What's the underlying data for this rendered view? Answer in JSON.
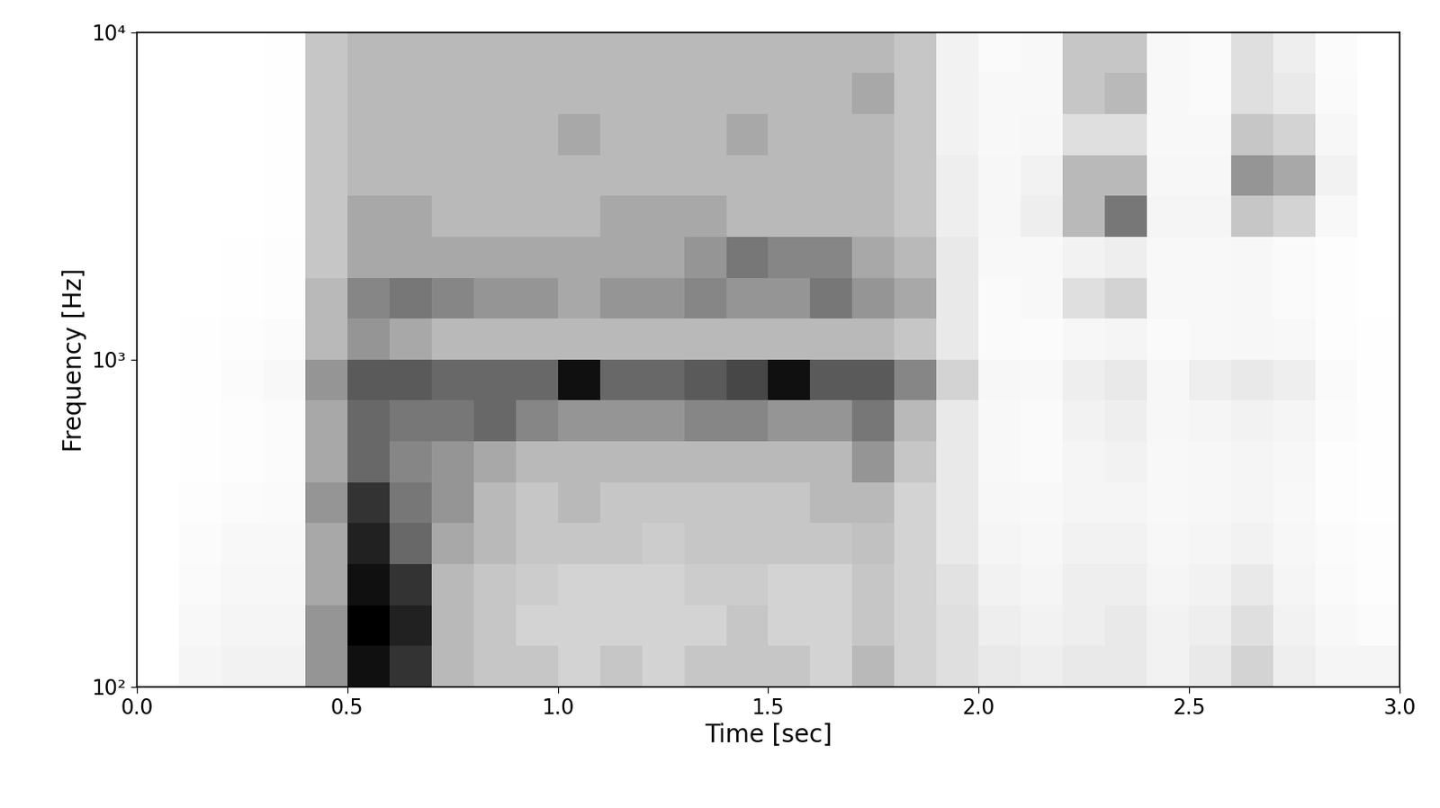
{
  "chart_data": {
    "type": "heatmap",
    "x_label": "Time [sec]",
    "y_label": "Frequency [Hz]",
    "log": "y",
    "color": "Greys",
    "xlim": [
      0.0,
      3.0
    ],
    "ylim": [
      100,
      10000
    ],
    "xticks": [
      0.0,
      0.5,
      1.0,
      1.5,
      2.0,
      2.5,
      3.0
    ],
    "yticks": [
      {
        "value": 100,
        "label": "10²"
      },
      {
        "value": 1000,
        "label": "10³"
      },
      {
        "value": 10000,
        "label": "10⁴"
      }
    ],
    "x": [
      0.0,
      0.1,
      0.2,
      0.3,
      0.4,
      0.5,
      0.6,
      0.7,
      0.8,
      0.9,
      1.0,
      1.1,
      1.2,
      1.3,
      1.4,
      1.5,
      1.6,
      1.7,
      1.8,
      1.9,
      2.0,
      2.1,
      2.2,
      2.3,
      2.4,
      2.5,
      2.6,
      2.7,
      2.8,
      2.9,
      3.0
    ],
    "y": [
      100,
      133.4,
      177.8,
      237.1,
      316.2,
      421.7,
      562.3,
      749.9,
      1000,
      1333.5,
      1778.3,
      2371.4,
      3162.3,
      4217,
      5623.4,
      7498.9,
      10000
    ],
    "cells": [
      [
        0,
        0.08,
        0.1,
        0.1,
        0.45,
        0.85,
        0.75,
        0.35,
        0.3,
        0.3,
        0.25,
        0.3,
        0.25,
        0.3,
        0.3,
        0.3,
        0.25,
        0.35,
        0.25,
        0.2,
        0.15,
        0.12,
        0.15,
        0.15,
        0.1,
        0.15,
        0.25,
        0.12,
        0.08,
        0.08
      ],
      [
        0,
        0.05,
        0.08,
        0.08,
        0.45,
        0.9,
        0.8,
        0.35,
        0.3,
        0.25,
        0.25,
        0.25,
        0.25,
        0.25,
        0.3,
        0.25,
        0.25,
        0.3,
        0.25,
        0.2,
        0.12,
        0.1,
        0.12,
        0.15,
        0.1,
        0.12,
        0.2,
        0.1,
        0.05,
        0.03
      ],
      [
        0,
        0.04,
        0.06,
        0.06,
        0.4,
        0.85,
        0.75,
        0.35,
        0.3,
        0.28,
        0.25,
        0.25,
        0.25,
        0.28,
        0.28,
        0.25,
        0.25,
        0.3,
        0.25,
        0.18,
        0.1,
        0.08,
        0.12,
        0.12,
        0.08,
        0.1,
        0.15,
        0.08,
        0.04,
        0.02
      ],
      [
        0,
        0.03,
        0.05,
        0.05,
        0.4,
        0.8,
        0.6,
        0.4,
        0.35,
        0.3,
        0.3,
        0.3,
        0.28,
        0.3,
        0.3,
        0.3,
        0.3,
        0.32,
        0.25,
        0.15,
        0.08,
        0.06,
        0.1,
        0.1,
        0.06,
        0.08,
        0.1,
        0.06,
        0.03,
        0.02
      ],
      [
        0,
        0.02,
        0.03,
        0.04,
        0.45,
        0.75,
        0.55,
        0.45,
        0.35,
        0.3,
        0.35,
        0.3,
        0.3,
        0.3,
        0.3,
        0.3,
        0.35,
        0.35,
        0.25,
        0.15,
        0.06,
        0.05,
        0.08,
        0.08,
        0.05,
        0.06,
        0.08,
        0.05,
        0.02,
        0.01
      ],
      [
        0,
        0.01,
        0.02,
        0.03,
        0.4,
        0.6,
        0.5,
        0.45,
        0.4,
        0.35,
        0.35,
        0.35,
        0.35,
        0.35,
        0.35,
        0.35,
        0.35,
        0.45,
        0.3,
        0.15,
        0.05,
        0.04,
        0.08,
        0.1,
        0.05,
        0.06,
        0.08,
        0.06,
        0.02,
        0.01
      ],
      [
        0,
        0.01,
        0.02,
        0.03,
        0.4,
        0.6,
        0.55,
        0.55,
        0.6,
        0.5,
        0.45,
        0.45,
        0.45,
        0.5,
        0.5,
        0.45,
        0.45,
        0.55,
        0.35,
        0.15,
        0.05,
        0.04,
        0.1,
        0.12,
        0.06,
        0.08,
        0.1,
        0.08,
        0.03,
        0.01
      ],
      [
        0,
        0.01,
        0.03,
        0.05,
        0.45,
        0.65,
        0.65,
        0.6,
        0.6,
        0.6,
        0.85,
        0.6,
        0.6,
        0.65,
        0.7,
        0.85,
        0.65,
        0.65,
        0.5,
        0.25,
        0.06,
        0.05,
        0.12,
        0.15,
        0.06,
        0.12,
        0.15,
        0.12,
        0.04,
        0.01
      ],
      [
        0,
        0.01,
        0.02,
        0.03,
        0.35,
        0.45,
        0.4,
        0.35,
        0.35,
        0.35,
        0.35,
        0.35,
        0.35,
        0.35,
        0.35,
        0.35,
        0.35,
        0.35,
        0.3,
        0.15,
        0.04,
        0.03,
        0.06,
        0.08,
        0.04,
        0.05,
        0.06,
        0.05,
        0.02,
        0.01
      ],
      [
        0,
        0,
        0.01,
        0.02,
        0.35,
        0.5,
        0.55,
        0.5,
        0.45,
        0.45,
        0.4,
        0.45,
        0.45,
        0.5,
        0.45,
        0.45,
        0.55,
        0.45,
        0.4,
        0.15,
        0.04,
        0.05,
        0.2,
        0.25,
        0.05,
        0.05,
        0.06,
        0.04,
        0.02,
        0
      ],
      [
        0,
        0,
        0.01,
        0.02,
        0.3,
        0.4,
        0.4,
        0.4,
        0.4,
        0.4,
        0.4,
        0.4,
        0.4,
        0.45,
        0.55,
        0.5,
        0.5,
        0.4,
        0.35,
        0.15,
        0.05,
        0.05,
        0.1,
        0.12,
        0.05,
        0.05,
        0.06,
        0.04,
        0.02,
        0
      ],
      [
        0,
        0,
        0,
        0.01,
        0.3,
        0.4,
        0.4,
        0.35,
        0.35,
        0.35,
        0.35,
        0.4,
        0.4,
        0.4,
        0.35,
        0.35,
        0.35,
        0.35,
        0.3,
        0.12,
        0.06,
        0.12,
        0.35,
        0.55,
        0.08,
        0.08,
        0.3,
        0.25,
        0.05,
        0
      ],
      [
        0,
        0,
        0,
        0.01,
        0.3,
        0.35,
        0.35,
        0.35,
        0.35,
        0.35,
        0.35,
        0.35,
        0.35,
        0.35,
        0.35,
        0.35,
        0.35,
        0.35,
        0.3,
        0.12,
        0.06,
        0.1,
        0.35,
        0.35,
        0.06,
        0.06,
        0.45,
        0.4,
        0.1,
        0
      ],
      [
        0,
        0,
        0,
        0.01,
        0.3,
        0.35,
        0.35,
        0.35,
        0.35,
        0.35,
        0.4,
        0.35,
        0.35,
        0.35,
        0.4,
        0.35,
        0.35,
        0.35,
        0.3,
        0.1,
        0.05,
        0.06,
        0.2,
        0.2,
        0.05,
        0.05,
        0.3,
        0.25,
        0.06,
        0
      ],
      [
        0,
        0,
        0,
        0.01,
        0.3,
        0.35,
        0.35,
        0.35,
        0.35,
        0.35,
        0.35,
        0.35,
        0.35,
        0.35,
        0.35,
        0.35,
        0.35,
        0.4,
        0.3,
        0.1,
        0.05,
        0.05,
        0.3,
        0.35,
        0.05,
        0.04,
        0.2,
        0.15,
        0.04,
        0
      ],
      [
        0,
        0,
        0,
        0.01,
        0.3,
        0.35,
        0.35,
        0.35,
        0.35,
        0.35,
        0.35,
        0.35,
        0.35,
        0.35,
        0.35,
        0.35,
        0.35,
        0.35,
        0.3,
        0.1,
        0.04,
        0.05,
        0.3,
        0.3,
        0.05,
        0.04,
        0.2,
        0.12,
        0.03,
        0
      ]
    ]
  }
}
